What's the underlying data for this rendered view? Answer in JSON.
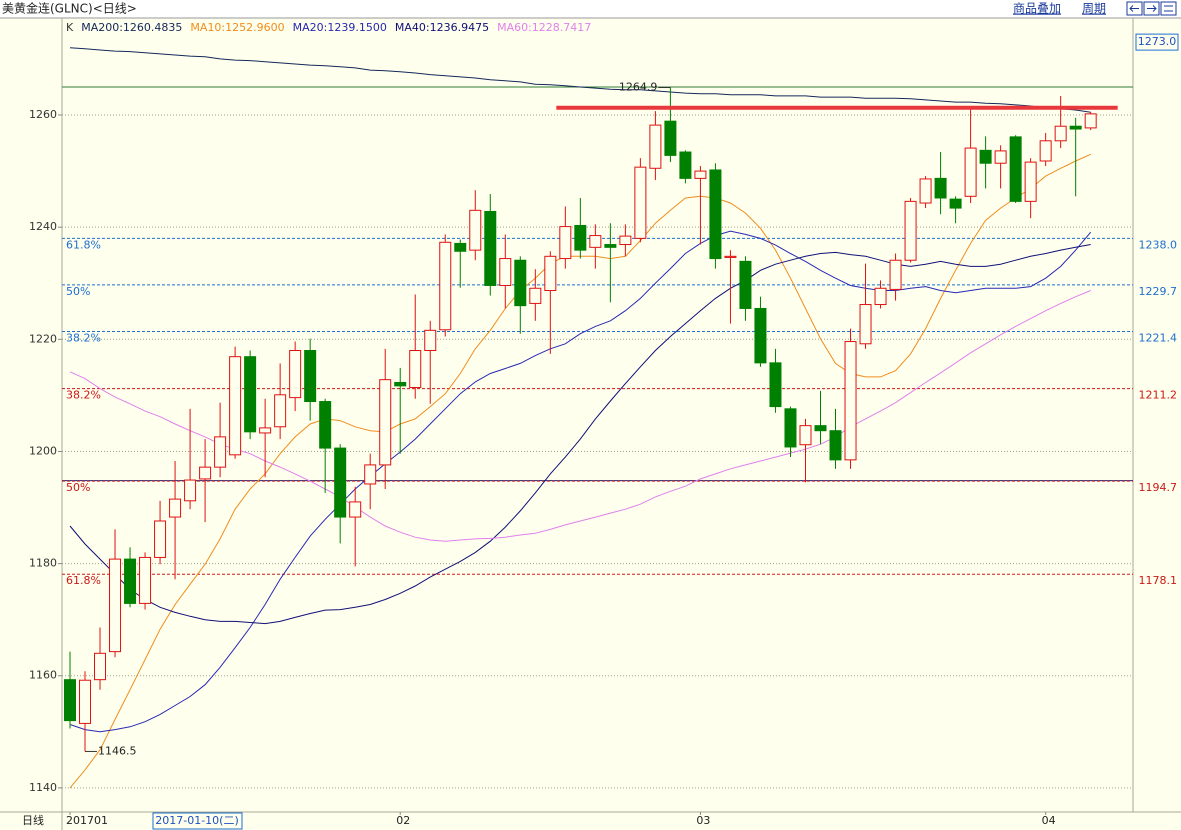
{
  "header": {
    "title": "美黄金连(GLNC)<日线>",
    "buttons": [
      "商品叠加",
      "周期"
    ]
  },
  "chart_data": {
    "type": "candlestick",
    "legend_prefix": "K",
    "period_label": "日线",
    "cursor_date": "2017-01-10(二)",
    "cursor_price": {
      "value": 1273.0,
      "label": "1273.0"
    },
    "categories": [
      "201701",
      null,
      null,
      null,
      null,
      null,
      null,
      null,
      null,
      null,
      null,
      null,
      null,
      null,
      null,
      null,
      null,
      null,
      null,
      null,
      null,
      null,
      "02",
      null,
      null,
      null,
      null,
      null,
      null,
      null,
      null,
      null,
      null,
      null,
      null,
      null,
      null,
      null,
      null,
      null,
      null,
      null,
      "03",
      null,
      null,
      null,
      null,
      null,
      null,
      null,
      null,
      null,
      null,
      null,
      null,
      null,
      null,
      null,
      null,
      null,
      null,
      null,
      null,
      null,
      null,
      "04",
      null,
      null,
      null
    ],
    "open": [
      1159.3,
      1151.5,
      1159.3,
      1164.3,
      1180.8,
      1172.9,
      1181.1,
      1188.3,
      1191.2,
      1195.1,
      1197.2,
      1199.4,
      1216.9,
      1203.3,
      1204.4,
      1209.6,
      1218.0,
      1208.9,
      1200.6,
      1188.3,
      1194.2,
      1197.6,
      1212.3,
      1211.4,
      1218.0,
      1221.7,
      1237.1,
      1235.9,
      1242.8,
      1229.6,
      1234.1,
      1226.4,
      1228.7,
      1234.4,
      1240.3,
      1236.4,
      1236.9,
      1236.9,
      1238.0,
      1250.5,
      1258.9,
      1253.4,
      1248.7,
      1250.2,
      1234.6,
      1233.9,
      1225.5,
      1215.8,
      1207.6,
      1201.2,
      1204.6,
      1203.7,
      1198.5,
      1219.2,
      1226.2,
      1228.9,
      1234.1,
      1244.3,
      1248.7,
      1245.0,
      1245.5,
      1253.7,
      1251.4,
      1256.1,
      1244.6,
      1251.8,
      1255.4,
      1258.0,
      1257.7
    ],
    "high": [
      1164.3,
      1160.8,
      1168.6,
      1186.1,
      1182.9,
      1182.0,
      1191.2,
      1198.3,
      1207.6,
      1202.2,
      1208.7,
      1218.7,
      1218.0,
      1209.4,
      1215.7,
      1219.6,
      1220.1,
      1209.4,
      1201.3,
      1193.7,
      1199.6,
      1218.3,
      1214.9,
      1228.0,
      1223.3,
      1238.7,
      1237.8,
      1246.6,
      1245.9,
      1238.7,
      1234.8,
      1232.5,
      1235.7,
      1243.7,
      1245.2,
      1240.5,
      1240.7,
      1240.5,
      1252.3,
      1260.7,
      1264.9,
      1253.7,
      1250.9,
      1251.4,
      1235.9,
      1234.8,
      1227.6,
      1218.3,
      1208.0,
      1205.8,
      1210.8,
      1207.6,
      1221.9,
      1233.5,
      1230.5,
      1235.3,
      1245.2,
      1249.1,
      1253.4,
      1245.5,
      1261.3,
      1256.2,
      1254.6,
      1256.4,
      1252.3,
      1256.8,
      1263.4,
      1259.5,
      1260.5
    ],
    "low": [
      1150.6,
      1146.5,
      1157.5,
      1163.3,
      1172.2,
      1171.8,
      1179.9,
      1177.2,
      1189.7,
      1187.4,
      1195.4,
      1198.7,
      1202.2,
      1195.4,
      1202.2,
      1207.2,
      1205.5,
      1192.6,
      1183.6,
      1179.5,
      1189.7,
      1193.3,
      1199.6,
      1209.4,
      1208.5,
      1220.5,
      1229.2,
      1234.1,
      1227.8,
      1225.5,
      1221.0,
      1223.3,
      1217.4,
      1232.6,
      1234.4,
      1232.6,
      1226.6,
      1234.8,
      1237.3,
      1248.4,
      1251.6,
      1247.8,
      1236.9,
      1232.6,
      1222.8,
      1223.3,
      1215.1,
      1206.9,
      1199.0,
      1194.5,
      1201.3,
      1196.9,
      1196.9,
      1218.3,
      1225.5,
      1226.9,
      1233.7,
      1243.4,
      1242.3,
      1240.7,
      1244.3,
      1246.9,
      1246.9,
      1244.3,
      1241.6,
      1250.9,
      1254.1,
      1245.5,
      1257.3
    ],
    "close": [
      1152.0,
      1159.2,
      1164.0,
      1180.8,
      1172.9,
      1181.1,
      1187.6,
      1191.5,
      1194.9,
      1197.2,
      1202.6,
      1216.9,
      1203.5,
      1204.2,
      1210.1,
      1218.0,
      1208.9,
      1200.6,
      1188.3,
      1191.0,
      1197.6,
      1212.8,
      1211.7,
      1218.0,
      1221.6,
      1237.3,
      1235.7,
      1243.0,
      1229.6,
      1234.4,
      1226.0,
      1229.1,
      1234.8,
      1240.1,
      1235.9,
      1238.5,
      1236.4,
      1238.4,
      1250.7,
      1258.2,
      1252.8,
      1248.7,
      1250.0,
      1234.4,
      1234.8,
      1225.5,
      1215.8,
      1208.0,
      1200.8,
      1204.6,
      1203.7,
      1198.5,
      1219.6,
      1226.2,
      1229.1,
      1234.1,
      1244.6,
      1248.6,
      1245.2,
      1243.4,
      1254.1,
      1251.4,
      1253.6,
      1244.6,
      1251.6,
      1255.4,
      1258.0,
      1257.5,
      1260.2
    ],
    "up_color": "#e01010",
    "down_color": "#008000",
    "series": [
      {
        "name": "MA200:1260.4835",
        "color": "#14285a",
        "values": [
          1272.0,
          1271.8,
          1271.6,
          1271.4,
          1271.3,
          1271.1,
          1270.9,
          1270.7,
          1270.5,
          1270.4,
          1270.0,
          1269.8,
          1269.7,
          1269.5,
          1269.3,
          1269.1,
          1268.9,
          1268.8,
          1268.6,
          1268.4,
          1268.0,
          1267.9,
          1267.7,
          1267.5,
          1267.2,
          1267.0,
          1266.8,
          1266.6,
          1266.3,
          1266.1,
          1265.9,
          1265.5,
          1265.4,
          1265.2,
          1265.0,
          1264.8,
          1264.6,
          1264.5,
          1264.5,
          1264.3,
          1264.1,
          1263.9,
          1263.8,
          1263.8,
          1263.6,
          1263.6,
          1263.6,
          1263.4,
          1263.4,
          1263.4,
          1263.2,
          1263.2,
          1263.2,
          1263.0,
          1263.0,
          1263.0,
          1262.9,
          1262.7,
          1262.5,
          1262.3,
          1262.3,
          1262.1,
          1262.0,
          1261.8,
          1261.6,
          1261.3,
          1261.1,
          1260.9,
          1260.5
        ]
      },
      {
        "name": "MA10:1252.9600",
        "color": "#f08c1e",
        "values": [
          1140.0,
          1143.2,
          1146.8,
          1152.2,
          1157.5,
          1162.9,
          1168.3,
          1172.7,
          1176.3,
          1179.9,
          1184.4,
          1189.7,
          1193.3,
          1196.0,
          1199.6,
          1202.6,
          1204.9,
          1205.8,
          1205.5,
          1204.4,
          1203.7,
          1203.5,
          1204.9,
          1205.8,
          1208.0,
          1210.3,
          1213.9,
          1218.3,
          1221.6,
          1225.5,
          1228.7,
          1230.9,
          1233.5,
          1234.8,
          1234.8,
          1234.8,
          1234.4,
          1234.8,
          1237.6,
          1240.7,
          1243.0,
          1245.2,
          1245.5,
          1245.2,
          1244.3,
          1242.5,
          1239.8,
          1235.9,
          1230.9,
          1225.5,
          1220.1,
          1215.7,
          1213.9,
          1213.3,
          1213.3,
          1214.4,
          1217.4,
          1221.9,
          1227.3,
          1232.3,
          1237.1,
          1241.2,
          1243.4,
          1245.2,
          1246.9,
          1249.1,
          1250.5,
          1251.8,
          1253.0
        ]
      },
      {
        "name": "MA20:1239.1500",
        "color": "#2828b4",
        "values": [
          1151.3,
          1150.4,
          1150.0,
          1150.4,
          1150.9,
          1151.8,
          1153.1,
          1154.7,
          1156.3,
          1158.4,
          1161.5,
          1165.0,
          1168.6,
          1172.7,
          1177.2,
          1181.1,
          1184.9,
          1187.9,
          1190.6,
          1193.3,
          1195.6,
          1197.8,
          1199.9,
          1202.2,
          1204.9,
          1207.6,
          1210.3,
          1212.4,
          1213.9,
          1214.8,
          1215.7,
          1217.1,
          1218.3,
          1219.2,
          1221.0,
          1222.3,
          1223.3,
          1225.1,
          1227.3,
          1230.0,
          1232.6,
          1235.3,
          1237.1,
          1238.5,
          1239.3,
          1238.7,
          1238.0,
          1236.8,
          1235.3,
          1233.9,
          1232.3,
          1230.9,
          1229.6,
          1229.1,
          1228.7,
          1228.7,
          1229.1,
          1229.4,
          1228.7,
          1228.3,
          1228.7,
          1229.1,
          1229.1,
          1229.1,
          1229.4,
          1230.9,
          1233.0,
          1235.9,
          1239.1
        ]
      },
      {
        "name": "MA40:1236.9475",
        "color": "#101078",
        "values": [
          1186.7,
          1183.5,
          1180.8,
          1178.1,
          1175.4,
          1173.6,
          1172.2,
          1171.3,
          1170.6,
          1170.0,
          1169.7,
          1169.7,
          1169.5,
          1169.3,
          1169.7,
          1170.4,
          1171.1,
          1171.7,
          1171.8,
          1172.2,
          1172.7,
          1173.6,
          1174.7,
          1176.0,
          1177.6,
          1179.0,
          1180.4,
          1182.0,
          1184.0,
          1186.5,
          1189.4,
          1192.6,
          1196.0,
          1199.0,
          1202.2,
          1205.8,
          1209.0,
          1212.1,
          1215.1,
          1218.0,
          1220.5,
          1222.8,
          1225.1,
          1227.3,
          1229.1,
          1230.5,
          1232.3,
          1233.4,
          1234.1,
          1234.8,
          1235.3,
          1235.5,
          1235.1,
          1234.8,
          1234.1,
          1233.4,
          1233.0,
          1233.4,
          1233.9,
          1233.4,
          1233.0,
          1233.0,
          1233.4,
          1234.1,
          1234.8,
          1235.3,
          1235.9,
          1236.4,
          1236.9
        ]
      },
      {
        "name": "MA60:1228.7417",
        "color": "#e080ec",
        "values": [
          1214.2,
          1213.0,
          1211.2,
          1209.7,
          1208.5,
          1207.2,
          1206.2,
          1204.9,
          1203.7,
          1202.6,
          1201.3,
          1200.4,
          1199.6,
          1198.3,
          1197.2,
          1196.0,
          1194.7,
          1193.3,
          1191.9,
          1190.1,
          1188.3,
          1186.7,
          1185.6,
          1184.7,
          1184.2,
          1184.0,
          1184.2,
          1184.4,
          1184.5,
          1184.7,
          1185.1,
          1185.4,
          1186.1,
          1186.9,
          1187.6,
          1188.3,
          1189.0,
          1189.7,
          1190.6,
          1191.9,
          1192.9,
          1193.8,
          1195.1,
          1196.0,
          1196.9,
          1197.6,
          1198.3,
          1199.0,
          1199.7,
          1200.4,
          1201.3,
          1202.6,
          1204.4,
          1205.8,
          1207.2,
          1208.7,
          1210.5,
          1212.3,
          1214.0,
          1215.8,
          1217.6,
          1219.2,
          1220.8,
          1222.3,
          1223.7,
          1225.1,
          1226.4,
          1227.6,
          1228.7
        ]
      }
    ],
    "ylim": [
      1135.7,
      1277.3
    ],
    "yticks": [
      1140,
      1160,
      1180,
      1200,
      1220,
      1240,
      1260
    ],
    "grid": true,
    "fib_levels": [
      {
        "pct": "61.8%",
        "price": {
          "value": 1238.0,
          "label": "1238.0"
        },
        "color": "#1e6fd0"
      },
      {
        "pct": "50%",
        "price": 1229.7,
        "color": "#1e6fd0"
      },
      {
        "pct": "38.2%",
        "price": 1221.4,
        "color": "#1e6fd0"
      },
      {
        "pct": "38.2%",
        "price": 1211.2,
        "color": "#cc1818"
      },
      {
        "pct": "50%",
        "price": 1194.7,
        "color": "#cc1818"
      },
      {
        "pct": "61.8%",
        "price": 1178.1,
        "color": "#cc1818"
      }
    ],
    "lines": [
      {
        "value": 1265.0,
        "color": "#2e7d32"
      },
      {
        "value": 1194.8,
        "color": "#1a237e"
      }
    ],
    "resistance": {
      "value": 1261.3,
      "x": [
        32.4,
        69.8
      ],
      "color": "#e8383c"
    },
    "max_label": "1264.9",
    "min_label": "1146.5"
  }
}
